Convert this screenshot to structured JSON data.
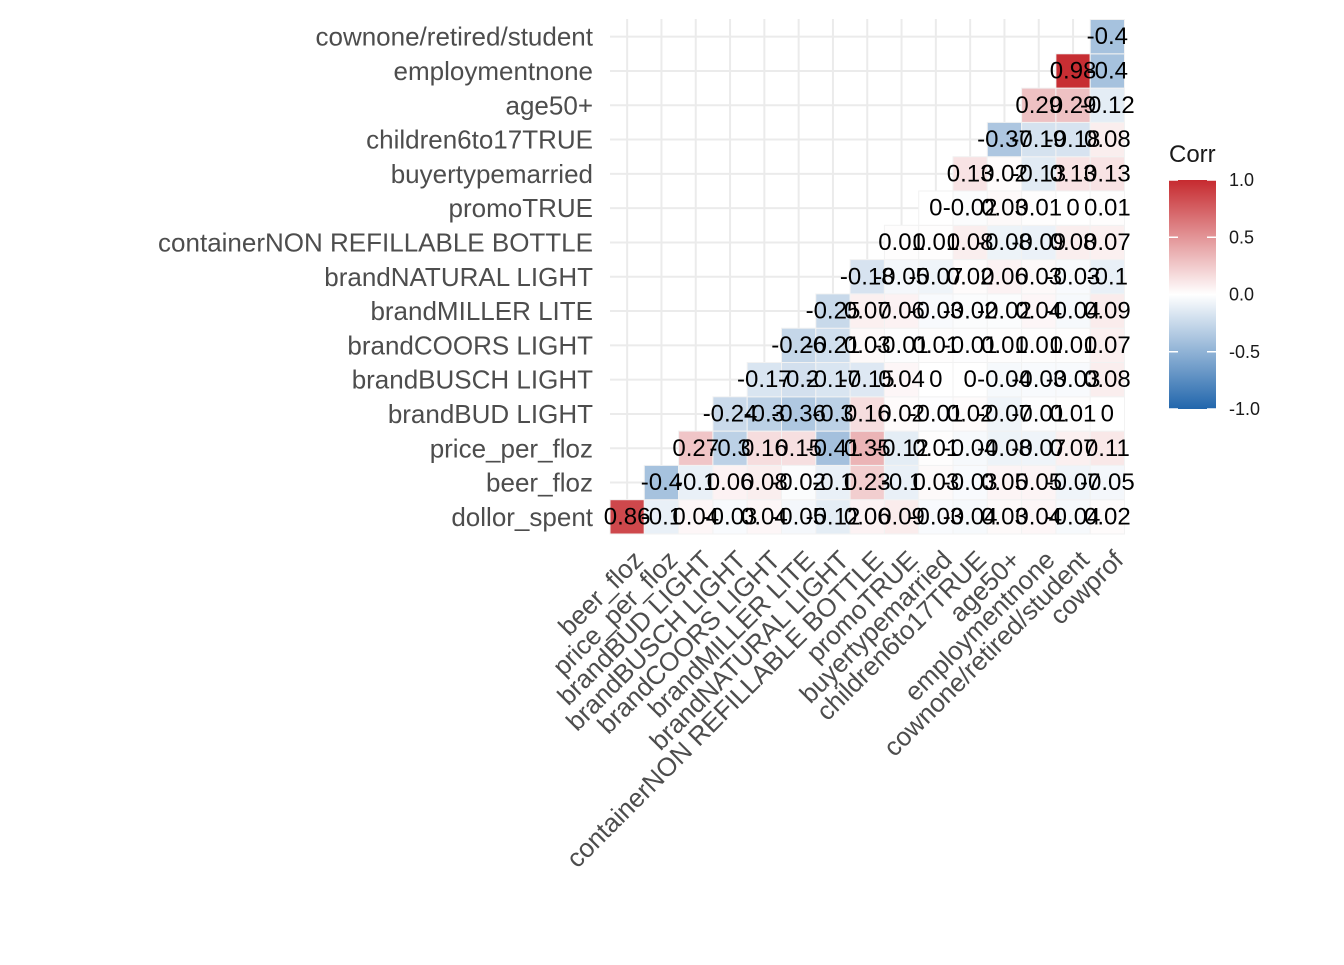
{
  "chart_data": {
    "type": "heatmap",
    "title": "",
    "variables": [
      "dollor_spent",
      "beer_floz",
      "price_per_floz",
      "brandBUD LIGHT",
      "brandBUSCH LIGHT",
      "brandCOORS LIGHT",
      "brandMILLER LITE",
      "brandNATURAL LIGHT",
      "containerNON REFILLABLE BOTTLE",
      "promoTRUE",
      "buyertypemarried",
      "children6to17TRUE",
      "age50+",
      "employmentnone",
      "cownone/retired/student",
      "cowprof"
    ],
    "y_labels": [
      "dollor_spent",
      "beer_floz",
      "price_per_floz",
      "brandBUD LIGHT",
      "brandBUSCH LIGHT",
      "brandCOORS LIGHT",
      "brandMILLER LITE",
      "brandNATURAL LIGHT",
      "containerNON REFILLABLE BOTTLE",
      "promoTRUE",
      "buyertypemarried",
      "children6to17TRUE",
      "age50+",
      "employmentnone",
      "cownone/retired/student"
    ],
    "x_labels": [
      "beer_floz",
      "price_per_floz",
      "brandBUD LIGHT",
      "brandBUSCH LIGHT",
      "brandCOORS LIGHT",
      "brandMILLER LITE",
      "brandNATURAL LIGHT",
      "containerNON REFILLABLE BOTTLE",
      "promoTRUE",
      "buyertypemarried",
      "children6to17TRUE",
      "age50+",
      "employmentnone",
      "cownone/retired/student",
      "cowprof"
    ],
    "cells": [
      {
        "row": "dollor_spent",
        "col": "beer_floz",
        "value": 0.86,
        "label": "0.86"
      },
      {
        "row": "dollor_spent",
        "col": "price_per_floz",
        "value": -0.1,
        "label": "-0.1"
      },
      {
        "row": "dollor_spent",
        "col": "brandBUD LIGHT",
        "value": 0.04,
        "label": "0.04"
      },
      {
        "row": "dollor_spent",
        "col": "brandBUSCH LIGHT",
        "value": -0.03,
        "label": "-0.03"
      },
      {
        "row": "dollor_spent",
        "col": "brandCOORS LIGHT",
        "value": 0.04,
        "label": "0.04"
      },
      {
        "row": "dollor_spent",
        "col": "brandMILLER LITE",
        "value": -0.05,
        "label": "-0.05"
      },
      {
        "row": "dollor_spent",
        "col": "brandNATURAL LIGHT",
        "value": -0.12,
        "label": "-0.12"
      },
      {
        "row": "dollor_spent",
        "col": "containerNON REFILLABLE BOTTLE",
        "value": 0.06,
        "label": "0.06"
      },
      {
        "row": "dollor_spent",
        "col": "promoTRUE",
        "value": 0.09,
        "label": "0.09"
      },
      {
        "row": "dollor_spent",
        "col": "buyertypemarried",
        "value": -0.03,
        "label": "-0.03"
      },
      {
        "row": "dollor_spent",
        "col": "children6to17TRUE",
        "value": -0.04,
        "label": "-0.04"
      },
      {
        "row": "dollor_spent",
        "col": "age50+",
        "value": 0.03,
        "label": "0.03"
      },
      {
        "row": "dollor_spent",
        "col": "employmentnone",
        "value": 0.04,
        "label": "0.04"
      },
      {
        "row": "dollor_spent",
        "col": "cownone/retired/student",
        "value": -0.04,
        "label": "-0.04"
      },
      {
        "row": "dollor_spent",
        "col": "cowprof",
        "value": 0.02,
        "label": "0.02"
      },
      {
        "row": "beer_floz",
        "col": "price_per_floz",
        "value": -0.4,
        "label": "-0.4"
      },
      {
        "row": "beer_floz",
        "col": "brandBUD LIGHT",
        "value": -0.1,
        "label": "-0.1"
      },
      {
        "row": "beer_floz",
        "col": "brandBUSCH LIGHT",
        "value": 0.06,
        "label": "0.06"
      },
      {
        "row": "beer_floz",
        "col": "brandCOORS LIGHT",
        "value": 0.08,
        "label": "0.08"
      },
      {
        "row": "beer_floz",
        "col": "brandMILLER LITE",
        "value": -0.02,
        "label": "-0.02"
      },
      {
        "row": "beer_floz",
        "col": "brandNATURAL LIGHT",
        "value": -0.1,
        "label": "-0.1"
      },
      {
        "row": "beer_floz",
        "col": "containerNON REFILLABLE BOTTLE",
        "value": 0.23,
        "label": "0.23"
      },
      {
        "row": "beer_floz",
        "col": "promoTRUE",
        "value": -0.1,
        "label": "-0.1"
      },
      {
        "row": "beer_floz",
        "col": "buyertypemarried",
        "value": 0.03,
        "label": "0.03"
      },
      {
        "row": "beer_floz",
        "col": "children6to17TRUE",
        "value": -0.03,
        "label": "-0.03"
      },
      {
        "row": "beer_floz",
        "col": "age50+",
        "value": 0.05,
        "label": "0.05"
      },
      {
        "row": "beer_floz",
        "col": "employmentnone",
        "value": 0.05,
        "label": "0.05"
      },
      {
        "row": "beer_floz",
        "col": "cownone/retired/student",
        "value": -0.07,
        "label": "-0.07"
      },
      {
        "row": "beer_floz",
        "col": "cowprof",
        "value": -0.05,
        "label": "-0.05"
      },
      {
        "row": "price_per_floz",
        "col": "brandBUD LIGHT",
        "value": 0.27,
        "label": "0.27"
      },
      {
        "row": "price_per_floz",
        "col": "brandBUSCH LIGHT",
        "value": -0.3,
        "label": "-0.3"
      },
      {
        "row": "price_per_floz",
        "col": "brandCOORS LIGHT",
        "value": 0.16,
        "label": "0.16"
      },
      {
        "row": "price_per_floz",
        "col": "brandMILLER LITE",
        "value": 0.15,
        "label": "0.15"
      },
      {
        "row": "price_per_floz",
        "col": "brandNATURAL LIGHT",
        "value": -0.41,
        "label": "-0.41"
      },
      {
        "row": "price_per_floz",
        "col": "containerNON REFILLABLE BOTTLE",
        "value": 0.35,
        "label": "0.35"
      },
      {
        "row": "price_per_floz",
        "col": "promoTRUE",
        "value": -0.12,
        "label": "-0.12"
      },
      {
        "row": "price_per_floz",
        "col": "buyertypemarried",
        "value": 0.01,
        "label": "0.01"
      },
      {
        "row": "price_per_floz",
        "col": "children6to17TRUE",
        "value": -0.04,
        "label": "-0.04"
      },
      {
        "row": "price_per_floz",
        "col": "age50+",
        "value": -0.08,
        "label": "-0.08"
      },
      {
        "row": "price_per_floz",
        "col": "employmentnone",
        "value": -0.07,
        "label": "-0.07"
      },
      {
        "row": "price_per_floz",
        "col": "cownone/retired/student",
        "value": 0.07,
        "label": "0.07"
      },
      {
        "row": "price_per_floz",
        "col": "cowprof",
        "value": 0.11,
        "label": "0.11"
      },
      {
        "row": "brandBUD LIGHT",
        "col": "brandBUSCH LIGHT",
        "value": -0.24,
        "label": "-0.24"
      },
      {
        "row": "brandBUD LIGHT",
        "col": "brandCOORS LIGHT",
        "value": -0.3,
        "label": "-0.3"
      },
      {
        "row": "brandBUD LIGHT",
        "col": "brandMILLER LITE",
        "value": -0.36,
        "label": "-0.36"
      },
      {
        "row": "brandBUD LIGHT",
        "col": "brandNATURAL LIGHT",
        "value": -0.3,
        "label": "-0.3"
      },
      {
        "row": "brandBUD LIGHT",
        "col": "containerNON REFILLABLE BOTTLE",
        "value": 0.16,
        "label": "0.16"
      },
      {
        "row": "brandBUD LIGHT",
        "col": "promoTRUE",
        "value": 0.02,
        "label": "0.02"
      },
      {
        "row": "brandBUD LIGHT",
        "col": "buyertypemarried",
        "value": -0.01,
        "label": "-0.01"
      },
      {
        "row": "brandBUD LIGHT",
        "col": "children6to17TRUE",
        "value": 0.02,
        "label": "0.02"
      },
      {
        "row": "brandBUD LIGHT",
        "col": "age50+",
        "value": -0.07,
        "label": "-0.07"
      },
      {
        "row": "brandBUD LIGHT",
        "col": "employmentnone",
        "value": -0.01,
        "label": "-0.01"
      },
      {
        "row": "brandBUD LIGHT",
        "col": "cownone/retired/student",
        "value": 0.01,
        "label": "0.01"
      },
      {
        "row": "brandBUD LIGHT",
        "col": "cowprof",
        "value": 0,
        "label": "0"
      },
      {
        "row": "brandBUSCH LIGHT",
        "col": "brandCOORS LIGHT",
        "value": -0.17,
        "label": "-0.17"
      },
      {
        "row": "brandBUSCH LIGHT",
        "col": "brandMILLER LITE",
        "value": -0.2,
        "label": "-0.2"
      },
      {
        "row": "brandBUSCH LIGHT",
        "col": "brandNATURAL LIGHT",
        "value": -0.17,
        "label": "-0.17"
      },
      {
        "row": "brandBUSCH LIGHT",
        "col": "containerNON REFILLABLE BOTTLE",
        "value": -0.15,
        "label": "-0.15"
      },
      {
        "row": "brandBUSCH LIGHT",
        "col": "promoTRUE",
        "value": 0.04,
        "label": "0.04"
      },
      {
        "row": "brandBUSCH LIGHT",
        "col": "buyertypemarried",
        "value": 0,
        "label": "0"
      },
      {
        "row": "brandBUSCH LIGHT",
        "col": "children6to17TRUE",
        "value": 0,
        "label": "0"
      },
      {
        "row": "brandBUSCH LIGHT",
        "col": "age50+",
        "value": -0.04,
        "label": "-0.04"
      },
      {
        "row": "brandBUSCH LIGHT",
        "col": "employmentnone",
        "value": -0.03,
        "label": "-0.03"
      },
      {
        "row": "brandBUSCH LIGHT",
        "col": "cownone/retired/student",
        "value": -0.03,
        "label": "-0.03"
      },
      {
        "row": "brandBUSCH LIGHT",
        "col": "cowprof",
        "value": 0.08,
        "label": "0.08"
      },
      {
        "row": "brandCOORS LIGHT",
        "col": "brandMILLER LITE",
        "value": -0.26,
        "label": "-0.26"
      },
      {
        "row": "brandCOORS LIGHT",
        "col": "brandNATURAL LIGHT",
        "value": -0.21,
        "label": "-0.21"
      },
      {
        "row": "brandCOORS LIGHT",
        "col": "containerNON REFILLABLE BOTTLE",
        "value": 0.03,
        "label": "0.03"
      },
      {
        "row": "brandCOORS LIGHT",
        "col": "promoTRUE",
        "value": -0.01,
        "label": "-0.01"
      },
      {
        "row": "brandCOORS LIGHT",
        "col": "buyertypemarried",
        "value": 0.01,
        "label": "0.01"
      },
      {
        "row": "brandCOORS LIGHT",
        "col": "children6to17TRUE",
        "value": -0.01,
        "label": "-0.01"
      },
      {
        "row": "brandCOORS LIGHT",
        "col": "age50+",
        "value": 0.01,
        "label": "0.01"
      },
      {
        "row": "brandCOORS LIGHT",
        "col": "employmentnone",
        "value": 0.01,
        "label": "0.01"
      },
      {
        "row": "brandCOORS LIGHT",
        "col": "cownone/retired/student",
        "value": 0.01,
        "label": "0.01"
      },
      {
        "row": "brandCOORS LIGHT",
        "col": "cowprof",
        "value": 0.07,
        "label": "0.07"
      },
      {
        "row": "brandMILLER LITE",
        "col": "brandNATURAL LIGHT",
        "value": -0.25,
        "label": "-0.25"
      },
      {
        "row": "brandMILLER LITE",
        "col": "containerNON REFILLABLE BOTTLE",
        "value": 0.07,
        "label": "0.07"
      },
      {
        "row": "brandMILLER LITE",
        "col": "promoTRUE",
        "value": 0.06,
        "label": "0.06"
      },
      {
        "row": "brandMILLER LITE",
        "col": "buyertypemarried",
        "value": -0.03,
        "label": "-0.03"
      },
      {
        "row": "brandMILLER LITE",
        "col": "children6to17TRUE",
        "value": -0.02,
        "label": "-0.02"
      },
      {
        "row": "brandMILLER LITE",
        "col": "age50+",
        "value": -0.02,
        "label": "-0.02"
      },
      {
        "row": "brandMILLER LITE",
        "col": "employmentnone",
        "value": 0.04,
        "label": "0.04"
      },
      {
        "row": "brandMILLER LITE",
        "col": "cownone/retired/student",
        "value": -0.04,
        "label": "-0.04"
      },
      {
        "row": "brandMILLER LITE",
        "col": "cowprof",
        "value": 0.09,
        "label": "0.09"
      },
      {
        "row": "brandNATURAL LIGHT",
        "col": "containerNON REFILLABLE BOTTLE",
        "value": -0.18,
        "label": "-0.18"
      },
      {
        "row": "brandNATURAL LIGHT",
        "col": "promoTRUE",
        "value": -0.05,
        "label": "-0.05"
      },
      {
        "row": "brandNATURAL LIGHT",
        "col": "buyertypemarried",
        "value": -0.07,
        "label": "-0.07"
      },
      {
        "row": "brandNATURAL LIGHT",
        "col": "children6to17TRUE",
        "value": 0.02,
        "label": "0.02"
      },
      {
        "row": "brandNATURAL LIGHT",
        "col": "age50+",
        "value": 0.06,
        "label": "0.06"
      },
      {
        "row": "brandNATURAL LIGHT",
        "col": "employmentnone",
        "value": 0.03,
        "label": "0.03"
      },
      {
        "row": "brandNATURAL LIGHT",
        "col": "cownone/retired/student",
        "value": -0.03,
        "label": "-0.03"
      },
      {
        "row": "brandNATURAL LIGHT",
        "col": "cowprof",
        "value": -0.1,
        "label": "-0.1"
      },
      {
        "row": "containerNON REFILLABLE BOTTLE",
        "col": "promoTRUE",
        "value": 0.01,
        "label": "0.01"
      },
      {
        "row": "containerNON REFILLABLE BOTTLE",
        "col": "buyertypemarried",
        "value": 0.01,
        "label": "0.01"
      },
      {
        "row": "containerNON REFILLABLE BOTTLE",
        "col": "children6to17TRUE",
        "value": 0.08,
        "label": "0.08"
      },
      {
        "row": "containerNON REFILLABLE BOTTLE",
        "col": "age50+",
        "value": -0.08,
        "label": "-0.08"
      },
      {
        "row": "containerNON REFILLABLE BOTTLE",
        "col": "employmentnone",
        "value": -0.09,
        "label": "-0.09"
      },
      {
        "row": "containerNON REFILLABLE BOTTLE",
        "col": "cownone/retired/student",
        "value": 0.08,
        "label": "0.08"
      },
      {
        "row": "containerNON REFILLABLE BOTTLE",
        "col": "cowprof",
        "value": 0.07,
        "label": "0.07"
      },
      {
        "row": "promoTRUE",
        "col": "buyertypemarried",
        "value": 0,
        "label": "0"
      },
      {
        "row": "promoTRUE",
        "col": "children6to17TRUE",
        "value": -0.02,
        "label": "-0.02"
      },
      {
        "row": "promoTRUE",
        "col": "age50+",
        "value": 0.03,
        "label": "0.03"
      },
      {
        "row": "promoTRUE",
        "col": "employmentnone",
        "value": 0.01,
        "label": "0.01"
      },
      {
        "row": "promoTRUE",
        "col": "cownone/retired/student",
        "value": 0,
        "label": "0"
      },
      {
        "row": "promoTRUE",
        "col": "cowprof",
        "value": 0.01,
        "label": "0.01"
      },
      {
        "row": "buyertypemarried",
        "col": "children6to17TRUE",
        "value": 0.13,
        "label": "0.13"
      },
      {
        "row": "buyertypemarried",
        "col": "age50+",
        "value": 0.02,
        "label": "0.02"
      },
      {
        "row": "buyertypemarried",
        "col": "employmentnone",
        "value": -0.13,
        "label": "-0.13"
      },
      {
        "row": "buyertypemarried",
        "col": "cownone/retired/student",
        "value": 0.13,
        "label": "0.13"
      },
      {
        "row": "buyertypemarried",
        "col": "cowprof",
        "value": 0.13,
        "label": "0.13"
      },
      {
        "row": "children6to17TRUE",
        "col": "age50+",
        "value": -0.37,
        "label": "-0.37"
      },
      {
        "row": "children6to17TRUE",
        "col": "employmentnone",
        "value": -0.19,
        "label": "-0.19"
      },
      {
        "row": "children6to17TRUE",
        "col": "cownone/retired/student",
        "value": -0.18,
        "label": "-0.18"
      },
      {
        "row": "children6to17TRUE",
        "col": "cowprof",
        "value": 0.08,
        "label": "0.08"
      },
      {
        "row": "age50+",
        "col": "employmentnone",
        "value": 0.29,
        "label": "0.29"
      },
      {
        "row": "age50+",
        "col": "cownone/retired/student",
        "value": 0.29,
        "label": "0.29"
      },
      {
        "row": "age50+",
        "col": "cowprof",
        "value": -0.12,
        "label": "-0.12"
      },
      {
        "row": "employmentnone",
        "col": "cownone/retired/student",
        "value": 0.98,
        "label": "0.98"
      },
      {
        "row": "employmentnone",
        "col": "cowprof",
        "value": -0.4,
        "label": "-0.4"
      },
      {
        "row": "cownone/retired/student",
        "col": "cowprof",
        "value": -0.4,
        "label": "-0.4"
      }
    ],
    "color_scale": {
      "low": "#2166AC",
      "mid": "#FFFFFF",
      "high": "#C62A2F",
      "limits": [
        -1,
        1
      ]
    },
    "legend": {
      "title": "Corr",
      "ticks": [
        1.0,
        0.5,
        0.0,
        -0.5,
        -1.0
      ],
      "tick_labels": [
        "1.0",
        "0.5",
        "0.0",
        "-0.5",
        "-1.0"
      ],
      "position": "right"
    },
    "grid": true
  }
}
